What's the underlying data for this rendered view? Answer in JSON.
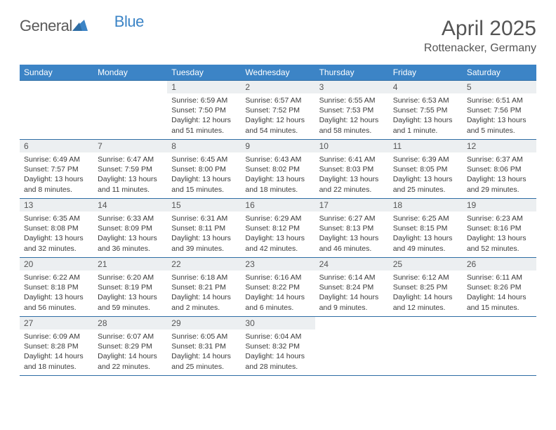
{
  "brand": {
    "part1": "General",
    "part2": "Blue"
  },
  "title": "April 2025",
  "location": "Rottenacker, Germany",
  "colors": {
    "header_bg": "#3c84c6",
    "header_text": "#ffffff",
    "row_border": "#2e6da4",
    "daynum_bg": "#eceff1",
    "text": "#3a3a3a",
    "title_text": "#555555"
  },
  "daysOfWeek": [
    "Sunday",
    "Monday",
    "Tuesday",
    "Wednesday",
    "Thursday",
    "Friday",
    "Saturday"
  ],
  "weeks": [
    [
      {
        "empty": true
      },
      {
        "empty": true
      },
      {
        "day": "1",
        "sunrise": "6:59 AM",
        "sunset": "7:50 PM",
        "daylight": "12 hours and 51 minutes."
      },
      {
        "day": "2",
        "sunrise": "6:57 AM",
        "sunset": "7:52 PM",
        "daylight": "12 hours and 54 minutes."
      },
      {
        "day": "3",
        "sunrise": "6:55 AM",
        "sunset": "7:53 PM",
        "daylight": "12 hours and 58 minutes."
      },
      {
        "day": "4",
        "sunrise": "6:53 AM",
        "sunset": "7:55 PM",
        "daylight": "13 hours and 1 minute."
      },
      {
        "day": "5",
        "sunrise": "6:51 AM",
        "sunset": "7:56 PM",
        "daylight": "13 hours and 5 minutes."
      }
    ],
    [
      {
        "day": "6",
        "sunrise": "6:49 AM",
        "sunset": "7:57 PM",
        "daylight": "13 hours and 8 minutes."
      },
      {
        "day": "7",
        "sunrise": "6:47 AM",
        "sunset": "7:59 PM",
        "daylight": "13 hours and 11 minutes."
      },
      {
        "day": "8",
        "sunrise": "6:45 AM",
        "sunset": "8:00 PM",
        "daylight": "13 hours and 15 minutes."
      },
      {
        "day": "9",
        "sunrise": "6:43 AM",
        "sunset": "8:02 PM",
        "daylight": "13 hours and 18 minutes."
      },
      {
        "day": "10",
        "sunrise": "6:41 AM",
        "sunset": "8:03 PM",
        "daylight": "13 hours and 22 minutes."
      },
      {
        "day": "11",
        "sunrise": "6:39 AM",
        "sunset": "8:05 PM",
        "daylight": "13 hours and 25 minutes."
      },
      {
        "day": "12",
        "sunrise": "6:37 AM",
        "sunset": "8:06 PM",
        "daylight": "13 hours and 29 minutes."
      }
    ],
    [
      {
        "day": "13",
        "sunrise": "6:35 AM",
        "sunset": "8:08 PM",
        "daylight": "13 hours and 32 minutes."
      },
      {
        "day": "14",
        "sunrise": "6:33 AM",
        "sunset": "8:09 PM",
        "daylight": "13 hours and 36 minutes."
      },
      {
        "day": "15",
        "sunrise": "6:31 AM",
        "sunset": "8:11 PM",
        "daylight": "13 hours and 39 minutes."
      },
      {
        "day": "16",
        "sunrise": "6:29 AM",
        "sunset": "8:12 PM",
        "daylight": "13 hours and 42 minutes."
      },
      {
        "day": "17",
        "sunrise": "6:27 AM",
        "sunset": "8:13 PM",
        "daylight": "13 hours and 46 minutes."
      },
      {
        "day": "18",
        "sunrise": "6:25 AM",
        "sunset": "8:15 PM",
        "daylight": "13 hours and 49 minutes."
      },
      {
        "day": "19",
        "sunrise": "6:23 AM",
        "sunset": "8:16 PM",
        "daylight": "13 hours and 52 minutes."
      }
    ],
    [
      {
        "day": "20",
        "sunrise": "6:22 AM",
        "sunset": "8:18 PM",
        "daylight": "13 hours and 56 minutes."
      },
      {
        "day": "21",
        "sunrise": "6:20 AM",
        "sunset": "8:19 PM",
        "daylight": "13 hours and 59 minutes."
      },
      {
        "day": "22",
        "sunrise": "6:18 AM",
        "sunset": "8:21 PM",
        "daylight": "14 hours and 2 minutes."
      },
      {
        "day": "23",
        "sunrise": "6:16 AM",
        "sunset": "8:22 PM",
        "daylight": "14 hours and 6 minutes."
      },
      {
        "day": "24",
        "sunrise": "6:14 AM",
        "sunset": "8:24 PM",
        "daylight": "14 hours and 9 minutes."
      },
      {
        "day": "25",
        "sunrise": "6:12 AM",
        "sunset": "8:25 PM",
        "daylight": "14 hours and 12 minutes."
      },
      {
        "day": "26",
        "sunrise": "6:11 AM",
        "sunset": "8:26 PM",
        "daylight": "14 hours and 15 minutes."
      }
    ],
    [
      {
        "day": "27",
        "sunrise": "6:09 AM",
        "sunset": "8:28 PM",
        "daylight": "14 hours and 18 minutes."
      },
      {
        "day": "28",
        "sunrise": "6:07 AM",
        "sunset": "8:29 PM",
        "daylight": "14 hours and 22 minutes."
      },
      {
        "day": "29",
        "sunrise": "6:05 AM",
        "sunset": "8:31 PM",
        "daylight": "14 hours and 25 minutes."
      },
      {
        "day": "30",
        "sunrise": "6:04 AM",
        "sunset": "8:32 PM",
        "daylight": "14 hours and 28 minutes."
      },
      {
        "empty": true
      },
      {
        "empty": true
      },
      {
        "empty": true
      }
    ]
  ],
  "labels": {
    "sunrise": "Sunrise:",
    "sunset": "Sunset:",
    "daylight": "Daylight:"
  }
}
